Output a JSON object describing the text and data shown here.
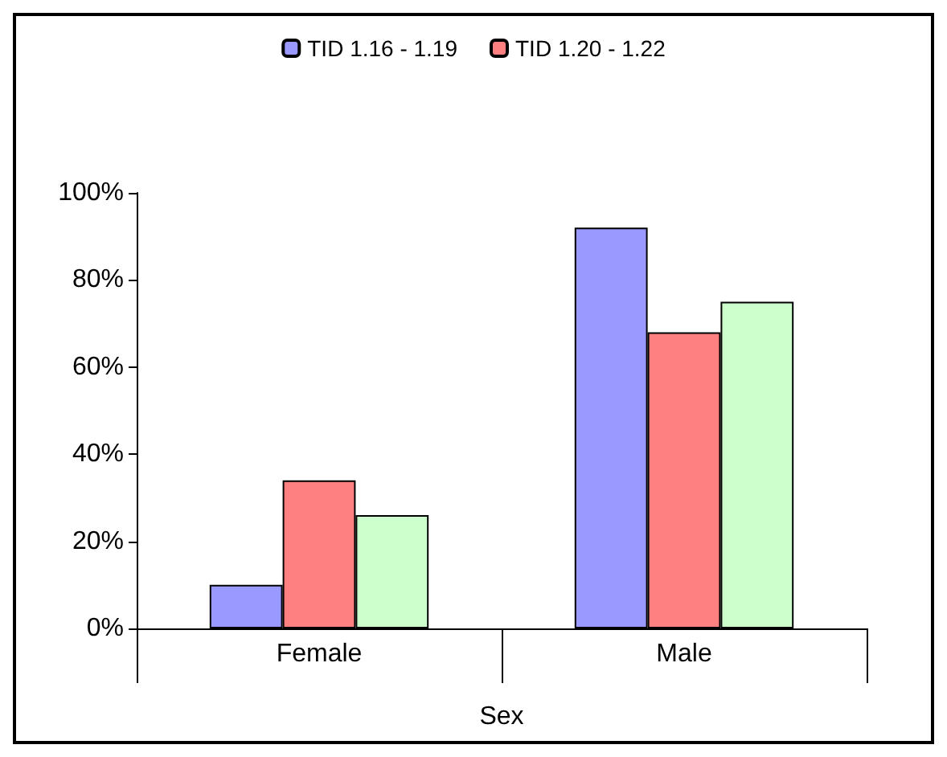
{
  "chart_data": {
    "type": "bar",
    "categories": [
      "Female",
      "Male"
    ],
    "xlabel": "Sex",
    "series": [
      {
        "name": "TID 1.16 - 1.19",
        "color": "#9999ff",
        "values": [
          10,
          92
        ]
      },
      {
        "name": "TID 1.20 - 1.22",
        "color": "#ff8080",
        "values": [
          34,
          68
        ]
      },
      {
        "color": "#ccffcc",
        "values": [
          26,
          75
        ]
      }
    ],
    "ylim": [
      0,
      100
    ],
    "yticks": [
      {
        "value": 0,
        "label": "0%"
      },
      {
        "value": 20,
        "label": "20%"
      },
      {
        "value": 40,
        "label": "40%"
      },
      {
        "value": 60,
        "label": "60%"
      },
      {
        "value": 80,
        "label": "80%"
      },
      {
        "value": 100,
        "label": "100%"
      }
    ],
    "grid": false,
    "legend": "top"
  }
}
